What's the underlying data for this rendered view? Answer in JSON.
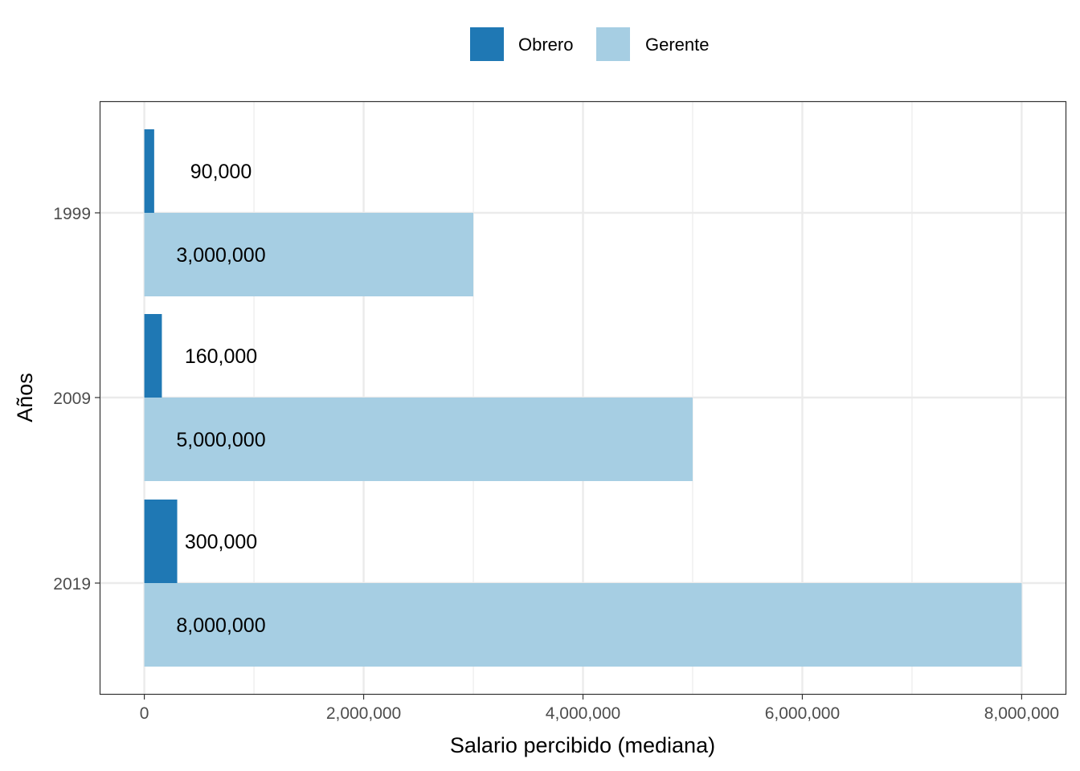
{
  "chart_data": {
    "type": "bar",
    "orientation": "horizontal",
    "categories": [
      "1999",
      "2009",
      "2019"
    ],
    "series": [
      {
        "name": "Obrero",
        "color": "#1f78b4",
        "values": [
          90000,
          160000,
          300000
        ],
        "labels": [
          "90,000",
          "160,000",
          "300,000"
        ]
      },
      {
        "name": "Gerente",
        "color": "#a6cee3",
        "values": [
          3000000,
          5000000,
          8000000
        ],
        "labels": [
          "3,000,000",
          "5,000,000",
          "8,000,000"
        ]
      }
    ],
    "xlabel": "Salario percibido (mediana)",
    "ylabel": "Años",
    "xlim": [
      -400000,
      8400000
    ],
    "xticks": [
      0,
      2000000,
      4000000,
      6000000,
      8000000
    ],
    "xtick_labels": [
      "0",
      "2,000,000",
      "4,000,000",
      "6,000,000",
      "8,000,000"
    ],
    "grid": true,
    "legend_position": "top"
  }
}
